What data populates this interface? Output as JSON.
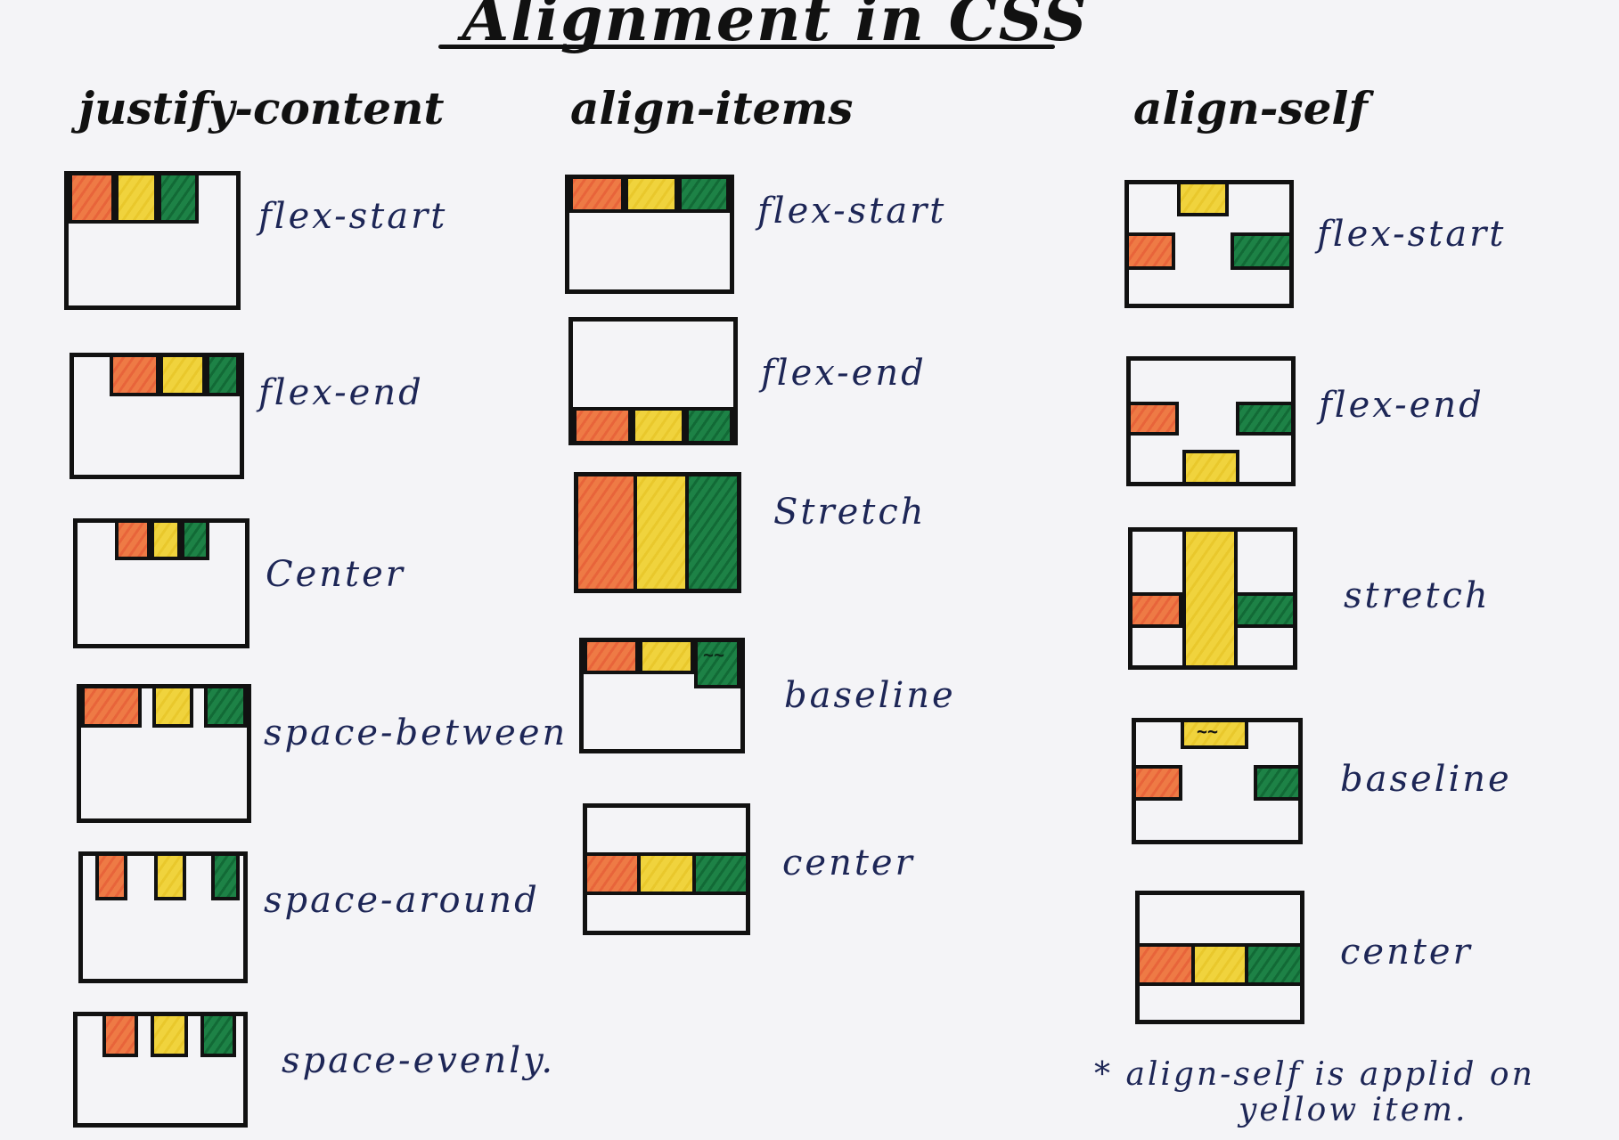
{
  "title": "Alignment in CSS",
  "columns": {
    "justify": {
      "heading": "justify-content",
      "labels": [
        "flex-start",
        "flex-end",
        "Center",
        "space-between",
        "space-around",
        "space-evenly."
      ]
    },
    "align_items": {
      "heading": "align-items",
      "labels": [
        "flex-start",
        "flex-end",
        "Stretch",
        "baseline",
        "center"
      ]
    },
    "align_self": {
      "heading": "align-self",
      "labels": [
        "flex-start",
        "flex-end",
        "stretch",
        "baseline",
        "center"
      ]
    }
  },
  "note": {
    "line1": "* align-self is applid on",
    "line2": "yellow item."
  },
  "colors": {
    "orange": "#ee7a45",
    "yellow": "#f0d33d",
    "green": "#1d8246",
    "ink": "#1d2656"
  },
  "squiggle_glyph": "~~"
}
